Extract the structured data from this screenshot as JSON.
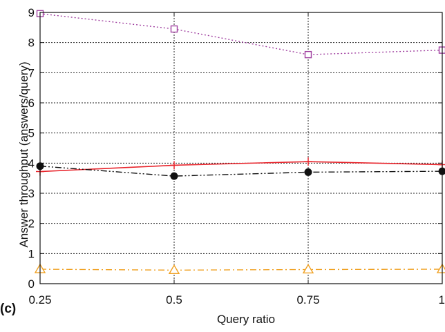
{
  "figure_label": "(c)",
  "chart_data": {
    "type": "line",
    "title": "",
    "xlabel": "Query ratio",
    "ylabel": "Answer throughput (answers/query)",
    "x": [
      0.25,
      0.5,
      0.75,
      1
    ],
    "x_tick_labels": [
      "0.25",
      "0.5",
      "0.75",
      "1"
    ],
    "xlim": [
      0.25,
      1
    ],
    "ylim": [
      0,
      9
    ],
    "y_ticks": [
      0,
      1,
      2,
      3,
      4,
      5,
      6,
      7,
      8,
      9
    ],
    "y_tick_labels": [
      "0",
      "1",
      "2",
      "3",
      "4",
      "5",
      "6",
      "7",
      "8",
      "9"
    ],
    "grid": true,
    "series": [
      {
        "values": [
          8.96,
          8.45,
          7.6,
          7.75
        ],
        "color": "#a040a0",
        "marker": "square",
        "line_style": "dotted"
      },
      {
        "values": [
          3.72,
          3.93,
          4.05,
          3.95
        ],
        "color": "#e8242b",
        "marker": "plus",
        "line_style": "solid"
      },
      {
        "values": [
          3.9,
          3.57,
          3.7,
          3.73
        ],
        "color": "#111111",
        "marker": "filled-circle",
        "line_style": "dash-dot-dot"
      },
      {
        "values": [
          0.48,
          0.45,
          0.47,
          0.48
        ],
        "color": "#f0a020",
        "marker": "triangle",
        "line_style": "dash-dot"
      }
    ]
  }
}
